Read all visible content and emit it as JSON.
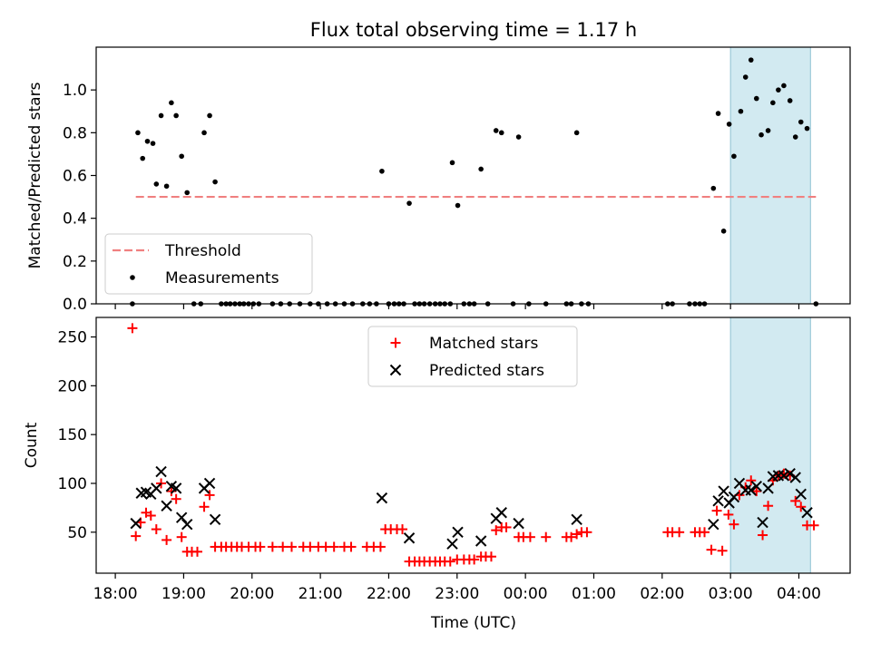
{
  "figure": {
    "title": "Flux total observing time = 1.17 h",
    "xlabel": "Time (UTC)",
    "x_ticks": [
      "18:00",
      "19:00",
      "20:00",
      "21:00",
      "22:00",
      "23:00",
      "00:00",
      "01:00",
      "02:00",
      "03:00",
      "04:00"
    ],
    "x_tick_hours": [
      0,
      1,
      2,
      3,
      4,
      5,
      6,
      7,
      8,
      9,
      10
    ],
    "x_range_hours": [
      -0.28,
      10.75
    ],
    "highlight_hours": [
      9.0,
      10.17
    ],
    "highlight_color": "#add8e6"
  },
  "chart_data": [
    {
      "type": "scatter",
      "title": "Flux total observing time = 1.17 h",
      "ylabel": "Matched/Predicted stars",
      "ylim": [
        0,
        1.2
      ],
      "yticks": [
        0.0,
        0.2,
        0.4,
        0.6,
        0.8,
        1.0
      ],
      "ytick_labels": [
        "0.0",
        "0.2",
        "0.4",
        "0.6",
        "0.8",
        "1.0"
      ],
      "legend_position": "lower-left",
      "threshold": {
        "name": "Threshold",
        "value": 0.5,
        "x_range": [
          0.3,
          10.25
        ],
        "color": "#f08080"
      },
      "measurements": {
        "name": "Measurements",
        "color": "#000000",
        "points": [
          [
            0.33,
            0.8
          ],
          [
            0.4,
            0.68
          ],
          [
            0.47,
            0.76
          ],
          [
            0.55,
            0.75
          ],
          [
            0.6,
            0.56
          ],
          [
            0.67,
            0.88
          ],
          [
            0.75,
            0.55
          ],
          [
            0.82,
            0.94
          ],
          [
            0.89,
            0.88
          ],
          [
            0.97,
            0.69
          ],
          [
            1.05,
            0.52
          ],
          [
            1.3,
            0.8
          ],
          [
            1.38,
            0.88
          ],
          [
            1.46,
            0.57
          ],
          [
            3.9,
            0.62
          ],
          [
            4.3,
            0.47
          ],
          [
            4.93,
            0.66
          ],
          [
            5.01,
            0.46
          ],
          [
            5.35,
            0.63
          ],
          [
            5.57,
            0.81
          ],
          [
            5.65,
            0.8
          ],
          [
            5.9,
            0.78
          ],
          [
            6.75,
            0.8
          ],
          [
            8.75,
            0.54
          ],
          [
            8.82,
            0.89
          ],
          [
            8.9,
            0.34
          ],
          [
            8.98,
            0.84
          ],
          [
            9.05,
            0.69
          ],
          [
            9.15,
            0.9
          ],
          [
            9.22,
            1.06
          ],
          [
            9.3,
            1.14
          ],
          [
            9.38,
            0.96
          ],
          [
            9.45,
            0.79
          ],
          [
            9.55,
            0.81
          ],
          [
            9.62,
            0.94
          ],
          [
            9.7,
            1.0
          ],
          [
            9.78,
            1.02
          ],
          [
            9.87,
            0.95
          ],
          [
            9.95,
            0.78
          ],
          [
            10.03,
            0.85
          ],
          [
            10.12,
            0.82
          ],
          [
            0.25,
            0.0
          ],
          [
            1.15,
            0.0
          ],
          [
            1.25,
            0.0
          ],
          [
            1.55,
            0.0
          ],
          [
            1.62,
            0.0
          ],
          [
            1.68,
            0.0
          ],
          [
            1.75,
            0.0
          ],
          [
            1.82,
            0.0
          ],
          [
            1.88,
            0.0
          ],
          [
            1.95,
            0.0
          ],
          [
            2.02,
            0.0
          ],
          [
            2.1,
            0.0
          ],
          [
            2.3,
            0.0
          ],
          [
            2.42,
            0.0
          ],
          [
            2.55,
            0.0
          ],
          [
            2.7,
            0.0
          ],
          [
            2.85,
            0.0
          ],
          [
            2.97,
            0.0
          ],
          [
            3.1,
            0.0
          ],
          [
            3.22,
            0.0
          ],
          [
            3.35,
            0.0
          ],
          [
            3.47,
            0.0
          ],
          [
            3.62,
            0.0
          ],
          [
            3.72,
            0.0
          ],
          [
            3.82,
            0.0
          ],
          [
            4.0,
            0.0
          ],
          [
            4.08,
            0.0
          ],
          [
            4.15,
            0.0
          ],
          [
            4.22,
            0.0
          ],
          [
            4.38,
            0.0
          ],
          [
            4.45,
            0.0
          ],
          [
            4.52,
            0.0
          ],
          [
            4.6,
            0.0
          ],
          [
            4.68,
            0.0
          ],
          [
            4.75,
            0.0
          ],
          [
            4.82,
            0.0
          ],
          [
            4.9,
            0.0
          ],
          [
            5.1,
            0.0
          ],
          [
            5.18,
            0.0
          ],
          [
            5.25,
            0.0
          ],
          [
            5.45,
            0.0
          ],
          [
            5.82,
            0.0
          ],
          [
            6.05,
            0.0
          ],
          [
            6.3,
            0.0
          ],
          [
            6.6,
            0.0
          ],
          [
            6.67,
            0.0
          ],
          [
            6.82,
            0.0
          ],
          [
            6.92,
            0.0
          ],
          [
            8.08,
            0.0
          ],
          [
            8.15,
            0.0
          ],
          [
            8.4,
            0.0
          ],
          [
            8.48,
            0.0
          ],
          [
            8.55,
            0.0
          ],
          [
            8.62,
            0.0
          ],
          [
            10.25,
            0.0
          ]
        ]
      }
    },
    {
      "type": "scatter",
      "ylabel": "Count",
      "ylim": [
        8,
        270
      ],
      "yticks": [
        50,
        100,
        150,
        200,
        250
      ],
      "ytick_labels": [
        "50",
        "100",
        "150",
        "200",
        "250"
      ],
      "legend_position": "upper-center",
      "series": [
        {
          "name": "Matched stars",
          "marker": "plus",
          "color": "#ff0000",
          "points": [
            [
              0.25,
              259
            ],
            [
              0.3,
              46
            ],
            [
              0.37,
              60
            ],
            [
              0.45,
              70
            ],
            [
              0.52,
              67
            ],
            [
              0.6,
              53
            ],
            [
              0.67,
              100
            ],
            [
              0.75,
              42
            ],
            [
              0.82,
              92
            ],
            [
              0.89,
              84
            ],
            [
              0.97,
              45
            ],
            [
              1.05,
              30
            ],
            [
              1.12,
              30
            ],
            [
              1.2,
              30
            ],
            [
              1.3,
              76
            ],
            [
              1.38,
              88
            ],
            [
              1.46,
              35
            ],
            [
              1.55,
              35
            ],
            [
              1.62,
              35
            ],
            [
              1.7,
              35
            ],
            [
              1.78,
              35
            ],
            [
              1.85,
              35
            ],
            [
              1.95,
              35
            ],
            [
              2.05,
              35
            ],
            [
              2.12,
              35
            ],
            [
              2.3,
              35
            ],
            [
              2.45,
              35
            ],
            [
              2.58,
              35
            ],
            [
              2.75,
              35
            ],
            [
              2.85,
              35
            ],
            [
              2.97,
              35
            ],
            [
              3.08,
              35
            ],
            [
              3.2,
              35
            ],
            [
              3.35,
              35
            ],
            [
              3.45,
              35
            ],
            [
              3.68,
              35
            ],
            [
              3.78,
              35
            ],
            [
              3.88,
              35
            ],
            [
              3.95,
              53
            ],
            [
              4.03,
              53
            ],
            [
              4.12,
              53
            ],
            [
              4.2,
              53
            ],
            [
              4.3,
              20
            ],
            [
              4.38,
              20
            ],
            [
              4.45,
              20
            ],
            [
              4.52,
              20
            ],
            [
              4.6,
              20
            ],
            [
              4.68,
              20
            ],
            [
              4.75,
              20
            ],
            [
              4.82,
              20
            ],
            [
              4.9,
              20
            ],
            [
              5.0,
              22
            ],
            [
              5.1,
              22
            ],
            [
              5.18,
              22
            ],
            [
              5.25,
              22
            ],
            [
              5.35,
              25
            ],
            [
              5.42,
              25
            ],
            [
              5.5,
              25
            ],
            [
              5.57,
              52
            ],
            [
              5.65,
              55
            ],
            [
              5.72,
              55
            ],
            [
              5.9,
              45
            ],
            [
              5.97,
              45
            ],
            [
              6.07,
              45
            ],
            [
              6.3,
              45
            ],
            [
              6.6,
              45
            ],
            [
              6.67,
              45
            ],
            [
              6.75,
              48
            ],
            [
              6.82,
              50
            ],
            [
              6.9,
              50
            ],
            [
              8.08,
              50
            ],
            [
              8.15,
              50
            ],
            [
              8.25,
              50
            ],
            [
              8.48,
              50
            ],
            [
              8.55,
              50
            ],
            [
              8.62,
              50
            ],
            [
              8.72,
              32
            ],
            [
              8.8,
              72
            ],
            [
              8.88,
              31
            ],
            [
              8.97,
              68
            ],
            [
              9.05,
              58
            ],
            [
              9.13,
              88
            ],
            [
              9.22,
              96
            ],
            [
              9.3,
              103
            ],
            [
              9.38,
              92
            ],
            [
              9.47,
              47
            ],
            [
              9.55,
              77
            ],
            [
              9.62,
              103
            ],
            [
              9.7,
              108
            ],
            [
              9.78,
              110
            ],
            [
              9.87,
              108
            ],
            [
              9.95,
              82
            ],
            [
              10.03,
              76
            ],
            [
              10.12,
              57
            ],
            [
              10.22,
              57
            ]
          ]
        },
        {
          "name": "Predicted stars",
          "marker": "x",
          "color": "#000000",
          "points": [
            [
              0.3,
              59
            ],
            [
              0.38,
              90
            ],
            [
              0.45,
              91
            ],
            [
              0.52,
              89
            ],
            [
              0.6,
              95
            ],
            [
              0.67,
              112
            ],
            [
              0.75,
              77
            ],
            [
              0.82,
              97
            ],
            [
              0.89,
              95
            ],
            [
              0.97,
              65
            ],
            [
              1.05,
              58
            ],
            [
              1.3,
              95
            ],
            [
              1.38,
              100
            ],
            [
              1.46,
              63
            ],
            [
              3.9,
              85
            ],
            [
              4.3,
              44
            ],
            [
              4.93,
              38
            ],
            [
              5.01,
              50
            ],
            [
              5.35,
              41
            ],
            [
              5.57,
              64
            ],
            [
              5.65,
              70
            ],
            [
              5.9,
              59
            ],
            [
              6.75,
              63
            ],
            [
              8.75,
              58
            ],
            [
              8.82,
              82
            ],
            [
              8.9,
              92
            ],
            [
              8.98,
              80
            ],
            [
              9.05,
              86
            ],
            [
              9.13,
              100
            ],
            [
              9.22,
              93
            ],
            [
              9.3,
              93
            ],
            [
              9.38,
              97
            ],
            [
              9.47,
              60
            ],
            [
              9.55,
              95
            ],
            [
              9.62,
              107
            ],
            [
              9.7,
              108
            ],
            [
              9.78,
              108
            ],
            [
              9.87,
              110
            ],
            [
              9.95,
              106
            ],
            [
              10.03,
              89
            ],
            [
              10.12,
              70
            ]
          ]
        }
      ]
    }
  ]
}
